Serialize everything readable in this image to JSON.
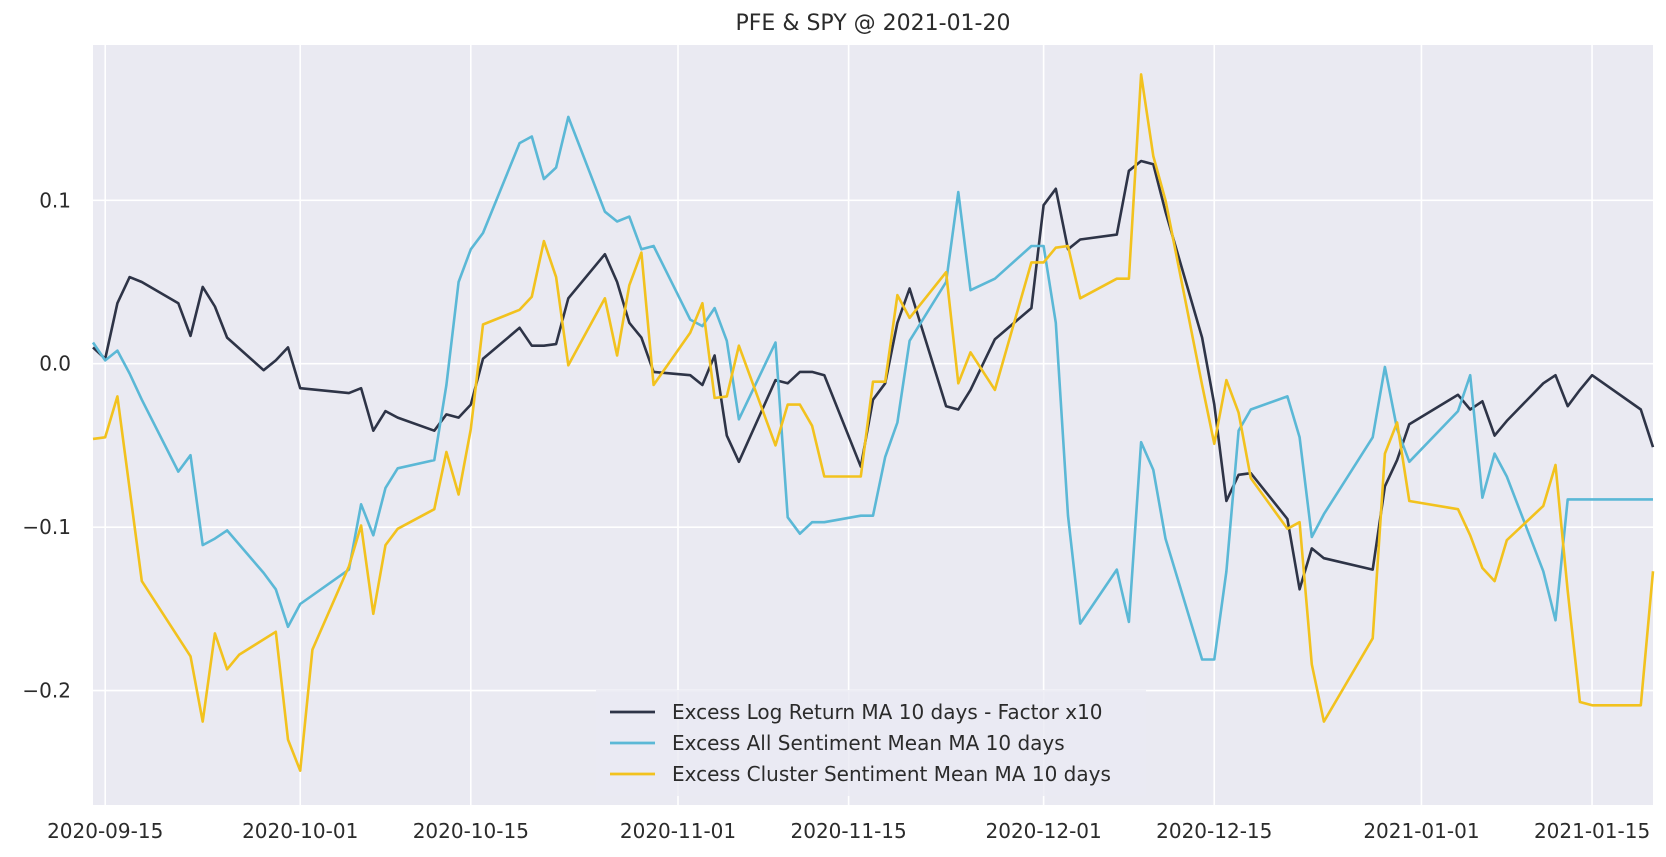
{
  "chart_data": {
    "type": "line",
    "title": "PFE & SPY @ 2021-01-20",
    "xlabel": "",
    "ylabel": "",
    "xlim": [
      "2020-09-14",
      "2021-01-20"
    ],
    "ylim": [
      -0.27,
      0.195
    ],
    "grid": true,
    "legend_position": "bottom-center",
    "x_ticks": [
      "2020-09-15",
      "2020-10-01",
      "2020-10-15",
      "2020-11-01",
      "2020-11-15",
      "2020-12-01",
      "2020-12-15",
      "2021-01-01",
      "2021-01-15"
    ],
    "y_ticks": [
      0.1,
      0.0,
      -0.1,
      -0.2
    ],
    "y_tick_labels": [
      "0.1",
      "0.0",
      "−0.1",
      "−0.2"
    ],
    "colors": {
      "background": "#eaeaf2",
      "grid": "#ffffff",
      "series": [
        "#2e3447",
        "#5bb8d6",
        "#f2c21e"
      ]
    },
    "series": [
      {
        "name": "Excess Log Return MA 10 days - Factor x10",
        "color": "#2e3447",
        "x": [
          "2020-09-14",
          "2020-09-15",
          "2020-09-16",
          "2020-09-17",
          "2020-09-18",
          "2020-09-21",
          "2020-09-22",
          "2020-09-23",
          "2020-09-24",
          "2020-09-25",
          "2020-09-28",
          "2020-09-29",
          "2020-09-30",
          "2020-10-01",
          "2020-10-05",
          "2020-10-06",
          "2020-10-07",
          "2020-10-08",
          "2020-10-09",
          "2020-10-12",
          "2020-10-13",
          "2020-10-14",
          "2020-10-15",
          "2020-10-16",
          "2020-10-19",
          "2020-10-20",
          "2020-10-21",
          "2020-10-22",
          "2020-10-23",
          "2020-10-26",
          "2020-10-27",
          "2020-10-28",
          "2020-10-29",
          "2020-10-30",
          "2020-11-02",
          "2020-11-03",
          "2020-11-04",
          "2020-11-05",
          "2020-11-06",
          "2020-11-09",
          "2020-11-10",
          "2020-11-11",
          "2020-11-12",
          "2020-11-13",
          "2020-11-16",
          "2020-11-17",
          "2020-11-18",
          "2020-11-19",
          "2020-11-20",
          "2020-11-23",
          "2020-11-24",
          "2020-11-25",
          "2020-11-27",
          "2020-11-30",
          "2020-12-01",
          "2020-12-02",
          "2020-12-03",
          "2020-12-04",
          "2020-12-07",
          "2020-12-08",
          "2020-12-09",
          "2020-12-10",
          "2020-12-11",
          "2020-12-14",
          "2020-12-15",
          "2020-12-16",
          "2020-12-17",
          "2020-12-18",
          "2020-12-21",
          "2020-12-22",
          "2020-12-23",
          "2020-12-24",
          "2020-12-28",
          "2020-12-29",
          "2020-12-30",
          "2020-12-31",
          "2021-01-04",
          "2021-01-05",
          "2021-01-06",
          "2021-01-07",
          "2021-01-08",
          "2021-01-11",
          "2021-01-12",
          "2021-01-13",
          "2021-01-14",
          "2021-01-15",
          "2021-01-19",
          "2021-01-20"
        ],
        "y": [
          0.01,
          0.003,
          0.037,
          0.053,
          0.05,
          0.037,
          0.017,
          0.047,
          0.035,
          0.016,
          -0.004,
          0.002,
          0.01,
          -0.015,
          -0.018,
          -0.015,
          -0.041,
          -0.029,
          -0.033,
          -0.041,
          -0.031,
          -0.033,
          -0.025,
          0.003,
          0.022,
          0.011,
          0.011,
          0.012,
          0.04,
          0.067,
          0.05,
          0.025,
          0.016,
          -0.005,
          -0.007,
          -0.013,
          0.005,
          -0.044,
          -0.06,
          -0.01,
          -0.012,
          -0.005,
          -0.005,
          -0.007,
          -0.063,
          -0.022,
          -0.012,
          0.025,
          0.046,
          -0.026,
          -0.028,
          -0.016,
          0.015,
          0.034,
          0.097,
          0.107,
          0.07,
          0.076,
          0.079,
          0.118,
          0.124,
          0.122,
          0.093,
          0.016,
          -0.025,
          -0.084,
          -0.068,
          -0.067,
          -0.095,
          -0.138,
          -0.113,
          -0.119,
          -0.126,
          -0.075,
          -0.059,
          -0.037,
          -0.019,
          -0.028,
          -0.023,
          -0.044,
          -0.035,
          -0.012,
          -0.007,
          -0.026,
          -0.016,
          -0.007,
          -0.028,
          -0.051
        ]
      },
      {
        "name": "Excess All Sentiment Mean MA 10 days",
        "color": "#5bb8d6",
        "x": [
          "2020-09-14",
          "2020-09-15",
          "2020-09-16",
          "2020-09-17",
          "2020-09-18",
          "2020-09-21",
          "2020-09-22",
          "2020-09-23",
          "2020-09-24",
          "2020-09-25",
          "2020-09-28",
          "2020-09-29",
          "2020-09-30",
          "2020-10-01",
          "2020-10-05",
          "2020-10-06",
          "2020-10-07",
          "2020-10-08",
          "2020-10-09",
          "2020-10-12",
          "2020-10-13",
          "2020-10-14",
          "2020-10-15",
          "2020-10-16",
          "2020-10-19",
          "2020-10-20",
          "2020-10-21",
          "2020-10-22",
          "2020-10-23",
          "2020-10-26",
          "2020-10-27",
          "2020-10-28",
          "2020-10-29",
          "2020-10-30",
          "2020-11-02",
          "2020-11-03",
          "2020-11-04",
          "2020-11-05",
          "2020-11-06",
          "2020-11-09",
          "2020-11-10",
          "2020-11-11",
          "2020-11-12",
          "2020-11-13",
          "2020-11-16",
          "2020-11-17",
          "2020-11-18",
          "2020-11-19",
          "2020-11-20",
          "2020-11-23",
          "2020-11-24",
          "2020-11-25",
          "2020-11-27",
          "2020-11-30",
          "2020-12-01",
          "2020-12-02",
          "2020-12-03",
          "2020-12-04",
          "2020-12-07",
          "2020-12-08",
          "2020-12-09",
          "2020-12-10",
          "2020-12-11",
          "2020-12-14",
          "2020-12-15",
          "2020-12-16",
          "2020-12-17",
          "2020-12-18",
          "2020-12-21",
          "2020-12-22",
          "2020-12-23",
          "2020-12-24",
          "2020-12-28",
          "2020-12-29",
          "2020-12-30",
          "2020-12-31",
          "2021-01-04",
          "2021-01-05",
          "2021-01-06",
          "2021-01-07",
          "2021-01-08",
          "2021-01-11",
          "2021-01-12",
          "2021-01-13",
          "2021-01-14",
          "2021-01-15",
          "2021-01-19",
          "2021-01-20"
        ],
        "y": [
          0.013,
          0.002,
          0.008,
          -0.006,
          -0.022,
          -0.066,
          -0.056,
          -0.111,
          -0.107,
          -0.102,
          -0.128,
          -0.138,
          -0.161,
          -0.147,
          -0.126,
          -0.086,
          -0.105,
          -0.076,
          -0.064,
          -0.059,
          -0.013,
          0.05,
          0.07,
          0.08,
          0.135,
          0.139,
          0.113,
          0.12,
          0.151,
          0.093,
          0.087,
          0.09,
          0.07,
          0.072,
          0.027,
          0.023,
          0.034,
          0.014,
          -0.034,
          0.013,
          -0.094,
          -0.104,
          -0.097,
          -0.097,
          -0.093,
          -0.093,
          -0.057,
          -0.036,
          0.014,
          0.05,
          0.105,
          0.045,
          0.052,
          0.072,
          0.072,
          0.025,
          -0.093,
          -0.159,
          -0.126,
          -0.158,
          -0.048,
          -0.065,
          -0.107,
          -0.181,
          -0.181,
          -0.127,
          -0.041,
          -0.028,
          -0.02,
          -0.045,
          -0.106,
          -0.092,
          -0.045,
          -0.002,
          -0.04,
          -0.06,
          -0.029,
          -0.007,
          -0.082,
          -0.055,
          -0.069,
          -0.127,
          -0.157,
          -0.083,
          -0.083,
          -0.083,
          -0.083,
          -0.083
        ]
      },
      {
        "name": "Excess Cluster Sentiment Mean MA 10 days",
        "color": "#f2c21e",
        "x": [
          "2020-09-14",
          "2020-09-15",
          "2020-09-16",
          "2020-09-18",
          "2020-09-22",
          "2020-09-23",
          "2020-09-24",
          "2020-09-25",
          "2020-09-26",
          "2020-09-29",
          "2020-09-30",
          "2020-10-01",
          "2020-10-02",
          "2020-10-05",
          "2020-10-06",
          "2020-10-07",
          "2020-10-08",
          "2020-10-09",
          "2020-10-12",
          "2020-10-13",
          "2020-10-14",
          "2020-10-15",
          "2020-10-16",
          "2020-10-19",
          "2020-10-20",
          "2020-10-21",
          "2020-10-22",
          "2020-10-23",
          "2020-10-26",
          "2020-10-27",
          "2020-10-28",
          "2020-10-29",
          "2020-10-30",
          "2020-11-02",
          "2020-11-03",
          "2020-11-04",
          "2020-11-05",
          "2020-11-06",
          "2020-11-09",
          "2020-11-10",
          "2020-11-11",
          "2020-11-12",
          "2020-11-13",
          "2020-11-16",
          "2020-11-17",
          "2020-11-18",
          "2020-11-19",
          "2020-11-20",
          "2020-11-23",
          "2020-11-24",
          "2020-11-25",
          "2020-11-27",
          "2020-11-30",
          "2020-12-01",
          "2020-12-02",
          "2020-12-03",
          "2020-12-04",
          "2020-12-07",
          "2020-12-08",
          "2020-12-09",
          "2020-12-10",
          "2020-12-11",
          "2020-12-14",
          "2020-12-15",
          "2020-12-16",
          "2020-12-17",
          "2020-12-18",
          "2020-12-21",
          "2020-12-22",
          "2020-12-23",
          "2020-12-24",
          "2020-12-28",
          "2020-12-29",
          "2020-12-30",
          "2020-12-31",
          "2021-01-04",
          "2021-01-05",
          "2021-01-06",
          "2021-01-07",
          "2021-01-08",
          "2021-01-11",
          "2021-01-12",
          "2021-01-13",
          "2021-01-14",
          "2021-01-15",
          "2021-01-19",
          "2021-01-20"
        ],
        "y": [
          -0.046,
          -0.045,
          -0.02,
          -0.133,
          -0.179,
          -0.219,
          -0.165,
          -0.187,
          -0.178,
          -0.164,
          -0.23,
          -0.249,
          -0.175,
          -0.124,
          -0.099,
          -0.153,
          -0.111,
          -0.101,
          -0.089,
          -0.054,
          -0.08,
          -0.04,
          0.024,
          0.033,
          0.041,
          0.075,
          0.053,
          -0.001,
          0.04,
          0.005,
          0.048,
          0.068,
          -0.013,
          0.019,
          0.037,
          -0.021,
          -0.02,
          0.011,
          -0.05,
          -0.025,
          -0.025,
          -0.038,
          -0.069,
          -0.069,
          -0.011,
          -0.011,
          0.042,
          0.028,
          0.056,
          -0.012,
          0.007,
          -0.016,
          0.062,
          0.062,
          0.071,
          0.072,
          0.04,
          0.052,
          0.052,
          0.177,
          0.127,
          0.1,
          -0.013,
          -0.049,
          -0.01,
          -0.03,
          -0.07,
          -0.101,
          -0.097,
          -0.184,
          -0.219,
          -0.168,
          -0.055,
          -0.036,
          -0.084,
          -0.089,
          -0.105,
          -0.125,
          -0.133,
          -0.108,
          -0.087,
          -0.062,
          -0.139,
          -0.207,
          -0.209,
          -0.209,
          -0.127
        ]
      }
    ]
  }
}
